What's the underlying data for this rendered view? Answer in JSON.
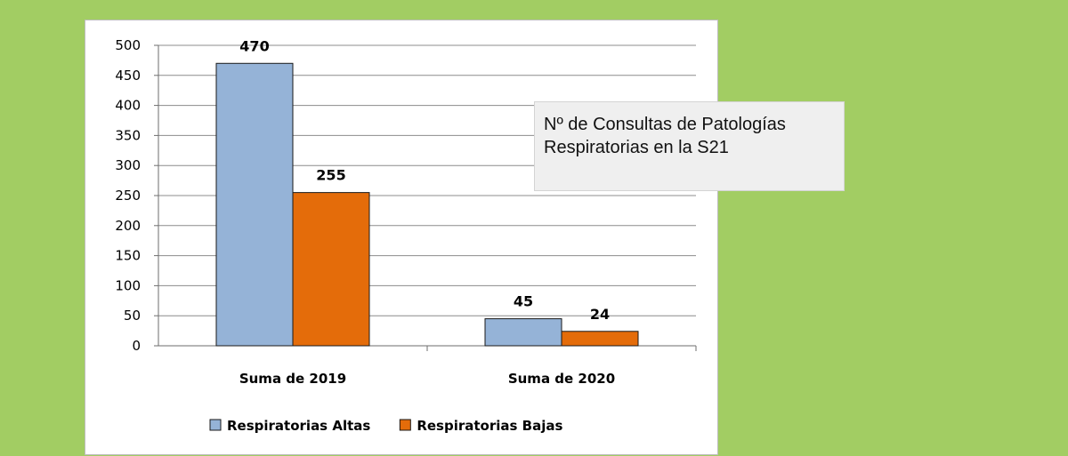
{
  "page": {
    "background": "#a2cd63"
  },
  "chart_data": {
    "type": "bar",
    "title_lines": [
      "Nº de Consultas de Patologías",
      "Respiratorias en la S21"
    ],
    "categories": [
      "Suma de 2019",
      "Suma de 2020"
    ],
    "series": [
      {
        "name": "Respiratorias Altas",
        "color": "#95b3d7",
        "values": [
          470,
          45
        ]
      },
      {
        "name": "Respiratorias Bajas",
        "color": "#e46c0a",
        "values": [
          255,
          24
        ]
      }
    ],
    "ylim": [
      0,
      500
    ],
    "yticks": [
      0,
      50,
      100,
      150,
      200,
      250,
      300,
      350,
      400,
      450,
      500
    ],
    "grid": true,
    "legend": "bottom",
    "xlabel": "",
    "ylabel": ""
  }
}
